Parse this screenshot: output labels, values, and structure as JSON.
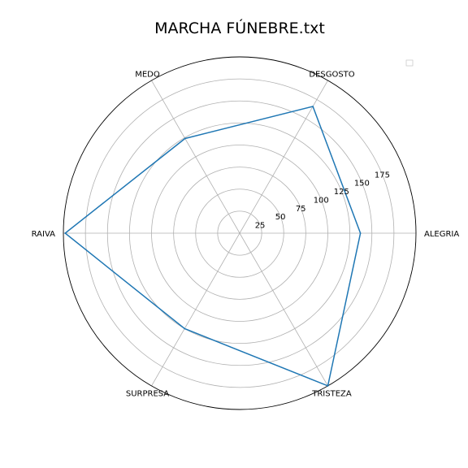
{
  "chart_data": {
    "type": "radar",
    "title": "MARCHA FÚNEBRE.txt",
    "categories": [
      "ALEGRIA",
      "DESGOSTO",
      "MEDO",
      "RAIVA",
      "SURPRESA",
      "TRISTEZA"
    ],
    "category_angles_deg": [
      0,
      60,
      120,
      180,
      240,
      300
    ],
    "r_ticks": [
      25,
      50,
      75,
      100,
      125,
      150,
      175
    ],
    "rlim": [
      0,
      200
    ],
    "grid": true,
    "series": [
      {
        "values": [
          137,
          166,
          124,
          198,
          125,
          200
        ],
        "color": "#1f77b4"
      }
    ],
    "legend": {
      "placement": "top-right",
      "entries": []
    }
  }
}
